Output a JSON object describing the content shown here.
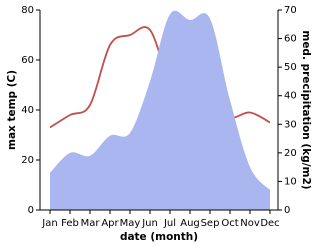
{
  "chart_data": {
    "type": "line-area",
    "x_label": "date (month)",
    "y_label": "max temp (C)",
    "y2_label": "med. precipitation (kg/m2)",
    "categories": [
      "Jan",
      "Feb",
      "Mar",
      "Apr",
      "May",
      "Jun",
      "Jul",
      "Aug",
      "Sep",
      "Oct",
      "Nov",
      "Dec"
    ],
    "series": [
      {
        "name": "max temp",
        "kind": "line",
        "color": "#c0504d",
        "values": [
          33,
          38,
          42,
          66,
          70,
          72,
          51,
          46,
          43,
          37,
          39,
          35
        ]
      },
      {
        "name": "med. precipitation",
        "kind": "area",
        "axis": "y2",
        "color": "#aab6f0",
        "values": [
          13,
          20,
          19,
          26,
          27,
          45,
          68.5,
          66.5,
          67,
          38.5,
          15,
          7
        ]
      }
    ],
    "ylim": [
      0,
      80
    ],
    "yticks": [
      0,
      20,
      40,
      60,
      80
    ],
    "y2lim": [
      0,
      70
    ],
    "y2ticks": [
      0,
      10,
      20,
      30,
      40,
      50,
      60,
      70
    ]
  }
}
